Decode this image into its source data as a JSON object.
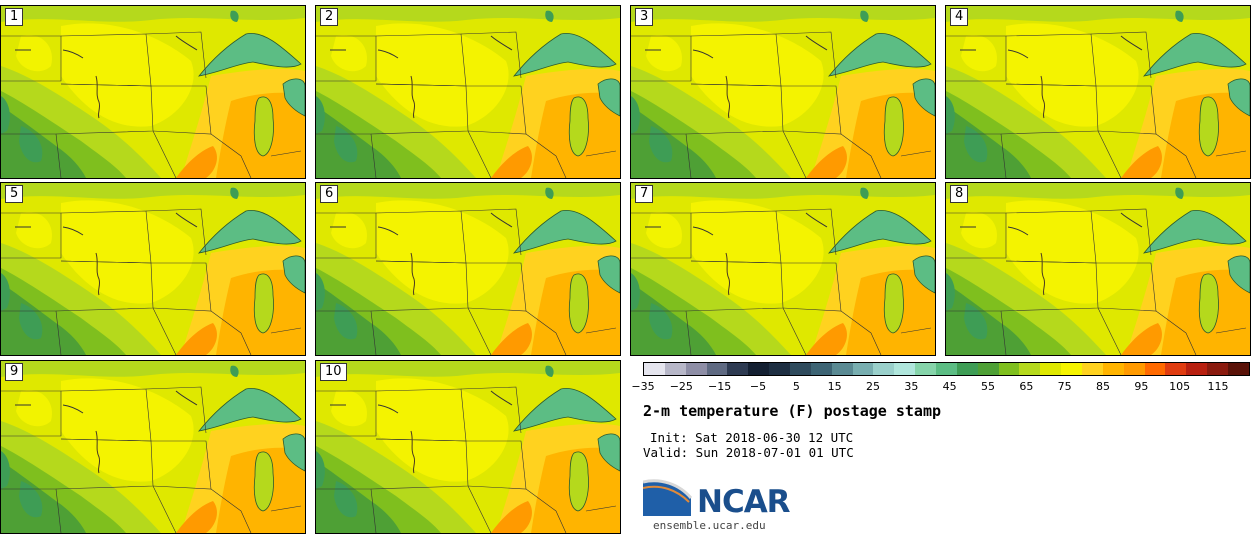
{
  "panels": [
    {
      "label": "1"
    },
    {
      "label": "2"
    },
    {
      "label": "3"
    },
    {
      "label": "4"
    },
    {
      "label": "5"
    },
    {
      "label": "6"
    },
    {
      "label": "7"
    },
    {
      "label": "8"
    },
    {
      "label": "9"
    },
    {
      "label": "10"
    }
  ],
  "colorbar": {
    "ticks": [
      "−35",
      "−25",
      "−15",
      "−5",
      "5",
      "15",
      "25",
      "35",
      "45",
      "55",
      "65",
      "75",
      "85",
      "95",
      "105",
      "115"
    ],
    "colors": [
      "#e5e5ee",
      "#b7b7c8",
      "#8e8ea6",
      "#5f6a82",
      "#2e3b52",
      "#142032",
      "#1e2f42",
      "#2f4b5d",
      "#3d6474",
      "#5a8a93",
      "#78aeb0",
      "#9ad0cb",
      "#b0e6dc",
      "#86d4aa",
      "#5cbd84",
      "#3e9d55",
      "#4ea035",
      "#7fbf1e",
      "#b5d91c",
      "#dfe800",
      "#f6f400",
      "#ffd21f",
      "#ffb400",
      "#ff9a00",
      "#ff6a00",
      "#e03c10",
      "#b82010",
      "#8a1a0e",
      "#5a1208"
    ]
  },
  "title": "2-m temperature (F) postage stamp",
  "init": "Init: Sat 2018-06-30 12 UTC",
  "valid": "Valid: Sun 2018-07-01 01 UTC",
  "logo": {
    "text": "NCAR",
    "url": "ensemble.ucar.edu"
  }
}
